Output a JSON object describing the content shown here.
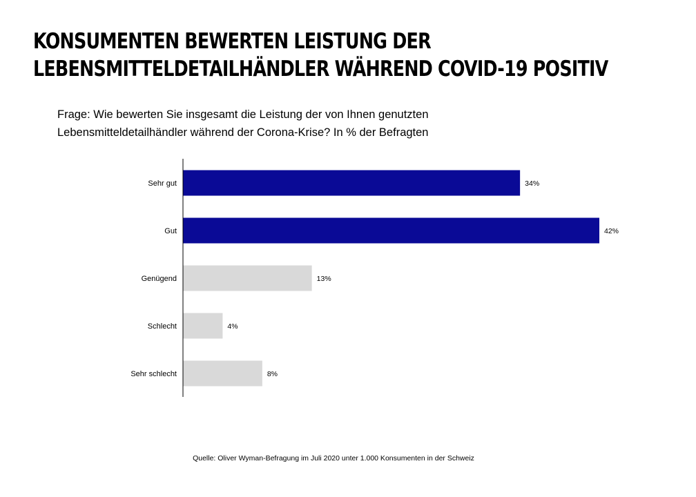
{
  "title": {
    "line1": "KONSUMENTEN BEWERTEN LEISTUNG DER",
    "line2": "LEBENSMITTELDETAILHÄNDLER WÄHREND COVID-19 POSITIV"
  },
  "question": {
    "line1": "Frage: Wie bewerten Sie insgesamt die Leistung der von Ihnen genutzten",
    "line2": "Lebensmitteldetailhändler während der Corona-Krise? In % der Befragten"
  },
  "source": "Quelle: Oliver Wyman-Befragung im Juli 2020 unter 1.000 Konsumenten in der Schweiz",
  "chart_data": {
    "type": "bar",
    "orientation": "horizontal",
    "categories": [
      "Sehr gut",
      "Gut",
      "Genügend",
      "Schlecht",
      "Sehr schlecht"
    ],
    "values": [
      34,
      42,
      13,
      4,
      8
    ],
    "data_labels": [
      "34%",
      "42%",
      "13%",
      "4%",
      "8%"
    ],
    "bar_colors": [
      "#0a0a96",
      "#0a0a96",
      "#d9d9d9",
      "#d9d9d9",
      "#d9d9d9"
    ],
    "xlim": [
      0,
      42
    ],
    "grid": false,
    "legend": "none"
  }
}
